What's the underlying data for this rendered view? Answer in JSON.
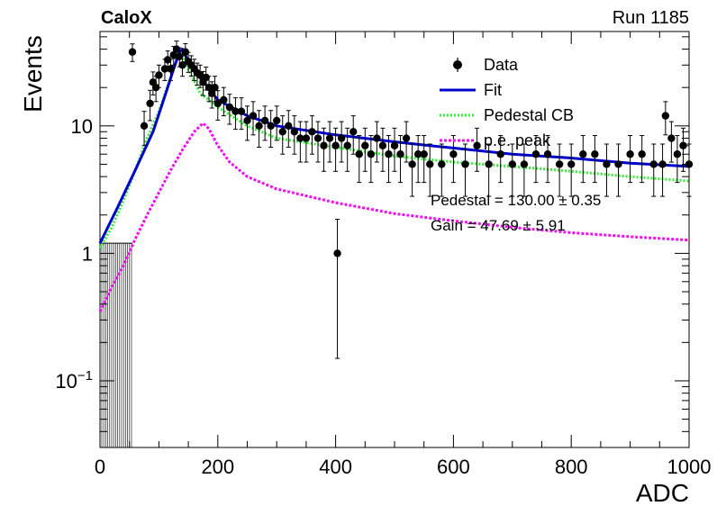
{
  "header": {
    "left": "CaloX",
    "right": "Run 1185"
  },
  "chart_data": {
    "type": "scatter",
    "xlabel": "ADC",
    "ylabel": "Events",
    "xlim": [
      0,
      1000
    ],
    "ylim": [
      0.03,
      55
    ],
    "yscale": "log",
    "xticks": [
      "0",
      "200",
      "400",
      "600",
      "800",
      "1000"
    ],
    "yticks": [
      {
        "value": 0.1,
        "label": "10",
        "sup": "−1"
      },
      {
        "value": 1,
        "label": "1",
        "sup": ""
      },
      {
        "value": 10,
        "label": "10",
        "sup": ""
      }
    ],
    "legend": {
      "position": "top-right",
      "entries": [
        "Data",
        "Fit",
        "Pedestal CB",
        "p.e. peak"
      ]
    },
    "annotations": [
      "Pedestal = 130.00 ± 0.35",
      "Gain = 47.69 ± 5.91"
    ],
    "colors": {
      "data": "#000000",
      "fit": "#0000cc",
      "pedestal": "#33ee33",
      "pe_peak": "#ee11ee"
    },
    "series": [
      {
        "name": "Data",
        "kind": "points",
        "x": [
          55,
          75,
          85,
          90,
          95,
          100,
          110,
          115,
          120,
          125,
          130,
          135,
          140,
          145,
          150,
          155,
          160,
          165,
          170,
          175,
          180,
          185,
          190,
          195,
          200,
          210,
          220,
          230,
          240,
          250,
          260,
          270,
          280,
          290,
          300,
          310,
          320,
          330,
          340,
          350,
          360,
          370,
          380,
          390,
          400,
          403,
          410,
          420,
          430,
          440,
          450,
          460,
          470,
          480,
          490,
          500,
          510,
          520,
          530,
          540,
          550,
          560,
          580,
          600,
          620,
          640,
          660,
          680,
          700,
          720,
          740,
          760,
          780,
          800,
          820,
          840,
          860,
          880,
          900,
          920,
          940,
          955,
          960,
          970,
          980,
          990,
          1000
        ],
        "y": [
          38,
          10,
          15,
          22,
          20,
          25,
          28,
          33,
          28,
          36,
          40,
          35,
          30,
          38,
          32,
          30,
          28,
          26,
          25,
          22,
          24,
          20,
          18,
          20,
          15,
          16,
          14,
          13,
          13,
          11,
          12,
          10,
          11,
          10,
          11,
          9,
          10,
          9,
          8,
          8,
          9,
          8,
          7,
          8,
          7,
          1.0,
          8,
          7,
          9,
          6,
          7,
          6,
          8,
          7,
          6,
          7,
          6,
          8,
          5,
          6,
          6,
          5,
          5,
          6,
          5,
          7,
          5,
          6,
          5,
          5,
          6,
          6,
          5,
          5,
          6,
          6,
          5,
          5,
          6,
          6,
          5,
          5,
          12,
          8,
          6,
          7,
          5
        ],
        "yerr": [
          6,
          3,
          4,
          4.5,
          4.5,
          5,
          5.3,
          5.7,
          5.3,
          6,
          6.3,
          5.9,
          5.5,
          6.2,
          5.7,
          5.5,
          5.3,
          5.1,
          5,
          4.7,
          4.9,
          4.5,
          4.2,
          4.5,
          3.9,
          4,
          3.7,
          3.6,
          3.6,
          3.3,
          3.5,
          3.2,
          3.3,
          3.2,
          3.3,
          3,
          3.2,
          3,
          2.8,
          2.8,
          3,
          2.8,
          2.6,
          2.8,
          2.6,
          0.85,
          2.8,
          2.6,
          3,
          2.4,
          2.6,
          2.4,
          2.8,
          2.6,
          2.4,
          2.6,
          2.4,
          2.8,
          2.2,
          2.4,
          2.4,
          2.2,
          2.2,
          2.4,
          2.2,
          2.6,
          2.2,
          2.4,
          2.2,
          2.2,
          2.4,
          2.4,
          2.2,
          2.2,
          2.4,
          2.4,
          2.2,
          2.2,
          2.4,
          2.4,
          2.2,
          2.2,
          3.5,
          2.8,
          2.4,
          2.6,
          2.2
        ]
      },
      {
        "name": "Fit",
        "kind": "line",
        "x": [
          0,
          30,
          60,
          90,
          110,
          125,
          135,
          140,
          150,
          170,
          200,
          250,
          300,
          400,
          500,
          560,
          700,
          800,
          900,
          1000
        ],
        "y": [
          1.2,
          2.3,
          4.5,
          9,
          17,
          28,
          38,
          40,
          32,
          24,
          16,
          12,
          10,
          8.5,
          7.5,
          7,
          6,
          5.6,
          5.1,
          4.8
        ]
      },
      {
        "name": "Pedestal CB",
        "kind": "line",
        "x": [
          0,
          20,
          40,
          60,
          80,
          100,
          120,
          135,
          140,
          150,
          170,
          200,
          250,
          300,
          400,
          500,
          600,
          700,
          800,
          900,
          1000
        ],
        "y": [
          1.1,
          1.6,
          2.6,
          4.5,
          8,
          13,
          24,
          38,
          36,
          28,
          18,
          14,
          10,
          8,
          6.8,
          5.8,
          5.2,
          4.8,
          4.4,
          4,
          3.7
        ]
      },
      {
        "name": "p.e. peak",
        "kind": "line",
        "x": [
          0,
          20,
          40,
          60,
          80,
          100,
          120,
          140,
          160,
          175,
          185,
          200,
          220,
          250,
          300,
          400,
          500,
          600,
          700,
          800,
          900,
          1000
        ],
        "y": [
          0.35,
          0.55,
          0.8,
          1.3,
          2,
          3,
          4.5,
          6.5,
          9,
          10.5,
          9.5,
          7,
          5.2,
          4,
          3.2,
          2.5,
          2.05,
          1.8,
          1.6,
          1.45,
          1.35,
          1.27
        ]
      }
    ],
    "histogram": {
      "name": "hatched-region",
      "edges": [
        0,
        55
      ],
      "value": 1.2
    }
  }
}
